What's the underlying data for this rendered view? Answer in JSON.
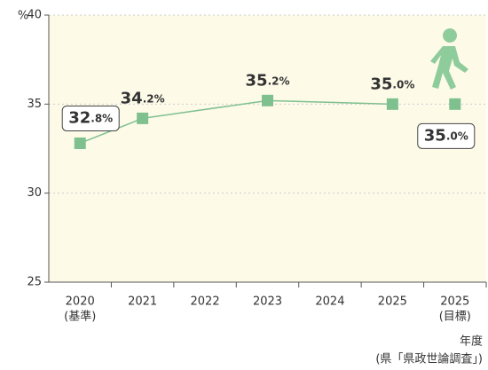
{
  "chart_data": {
    "type": "line",
    "y_unit": "%",
    "x_label": "年度",
    "source": "(県「県政世論調査」)",
    "categories": [
      [
        "2020",
        "(基準)"
      ],
      [
        "2021"
      ],
      [
        "2022"
      ],
      [
        "2023"
      ],
      [
        "2024"
      ],
      [
        "2025"
      ],
      [
        "2025",
        "(目標)"
      ]
    ],
    "series": [
      {
        "color": "#7fc08f",
        "values": [
          32.8,
          34.2,
          null,
          35.2,
          null,
          35.0,
          null
        ],
        "value_labels": [
          "32.8%",
          "34.2%",
          null,
          "35.2%",
          null,
          "35.0%",
          null
        ]
      },
      {
        "color": "#7fc08f",
        "values": [
          null,
          null,
          null,
          null,
          null,
          null,
          35.0
        ],
        "value_labels": [
          null,
          null,
          null,
          null,
          null,
          null,
          "35.0%"
        ]
      }
    ],
    "ylim": [
      25,
      40
    ],
    "yticks": [
      25,
      30,
      35,
      40
    ],
    "grid": true
  }
}
